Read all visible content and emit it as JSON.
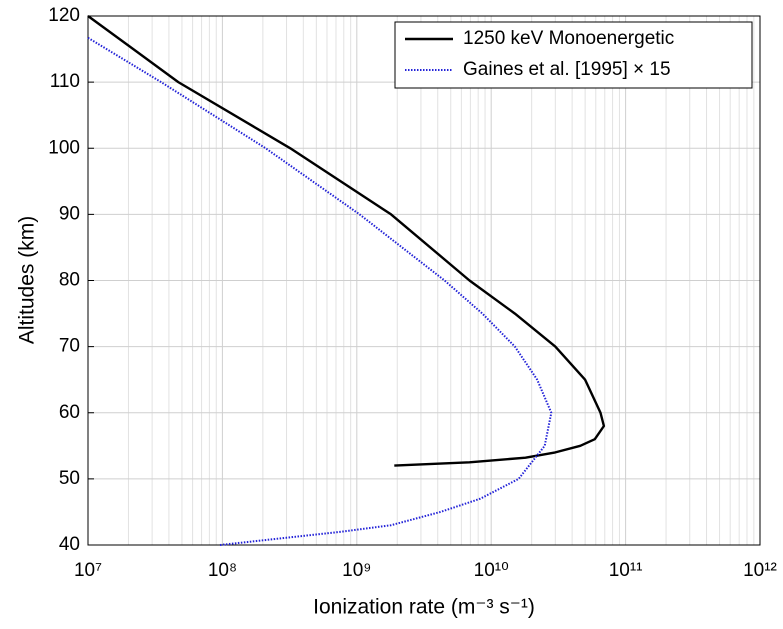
{
  "chart_data": {
    "type": "line",
    "xlabel": "Ionization rate (m⁻³ s⁻¹)",
    "ylabel": "Altitudes (km)",
    "xscale": "log",
    "xlim": [
      10000000,
      1000000000000
    ],
    "ylim": [
      40,
      120
    ],
    "xticks": [
      {
        "value": 10000000,
        "label": "10⁷"
      },
      {
        "value": 100000000,
        "label": "10⁸"
      },
      {
        "value": 1000000000,
        "label": "10⁹"
      },
      {
        "value": 10000000000,
        "label": "10¹⁰"
      },
      {
        "value": 100000000000,
        "label": "10¹¹"
      },
      {
        "value": 1000000000000,
        "label": "10¹²"
      }
    ],
    "yticks": [
      40,
      50,
      60,
      70,
      80,
      90,
      100,
      110,
      120
    ],
    "grid": true,
    "minor_grid": true,
    "legend": "upper right",
    "series": [
      {
        "name": "1250 keV Monoenergetic",
        "color": "#000000",
        "style": "solid",
        "x": [
          10000000,
          47000000,
          320000000,
          1800000000,
          6900000000,
          15000000000,
          30000000000,
          50000000000,
          65000000000,
          69000000000,
          59000000000,
          46000000000,
          30000000000,
          18000000000,
          6900000000,
          1900000000
        ],
        "values": [
          120,
          110,
          100,
          90,
          80,
          75,
          70,
          65,
          60,
          58,
          56,
          55,
          54,
          53.2,
          52.5,
          52
        ]
      },
      {
        "name": "Gaines et al. [1995] × 15",
        "color": "#2323d8",
        "style": "dotted",
        "x": [
          10000000,
          35000000,
          210000000,
          1050000000,
          4500000000,
          8600000000,
          15000000000,
          22000000000,
          28000000000,
          25000000000,
          16000000000,
          8300000000,
          4200000000,
          1800000000,
          760000000,
          270000000,
          96000000
        ],
        "values": [
          116.7,
          110,
          100,
          90,
          80,
          75,
          70,
          65,
          60,
          55,
          50,
          47,
          45,
          43,
          42,
          41,
          40
        ]
      }
    ]
  }
}
